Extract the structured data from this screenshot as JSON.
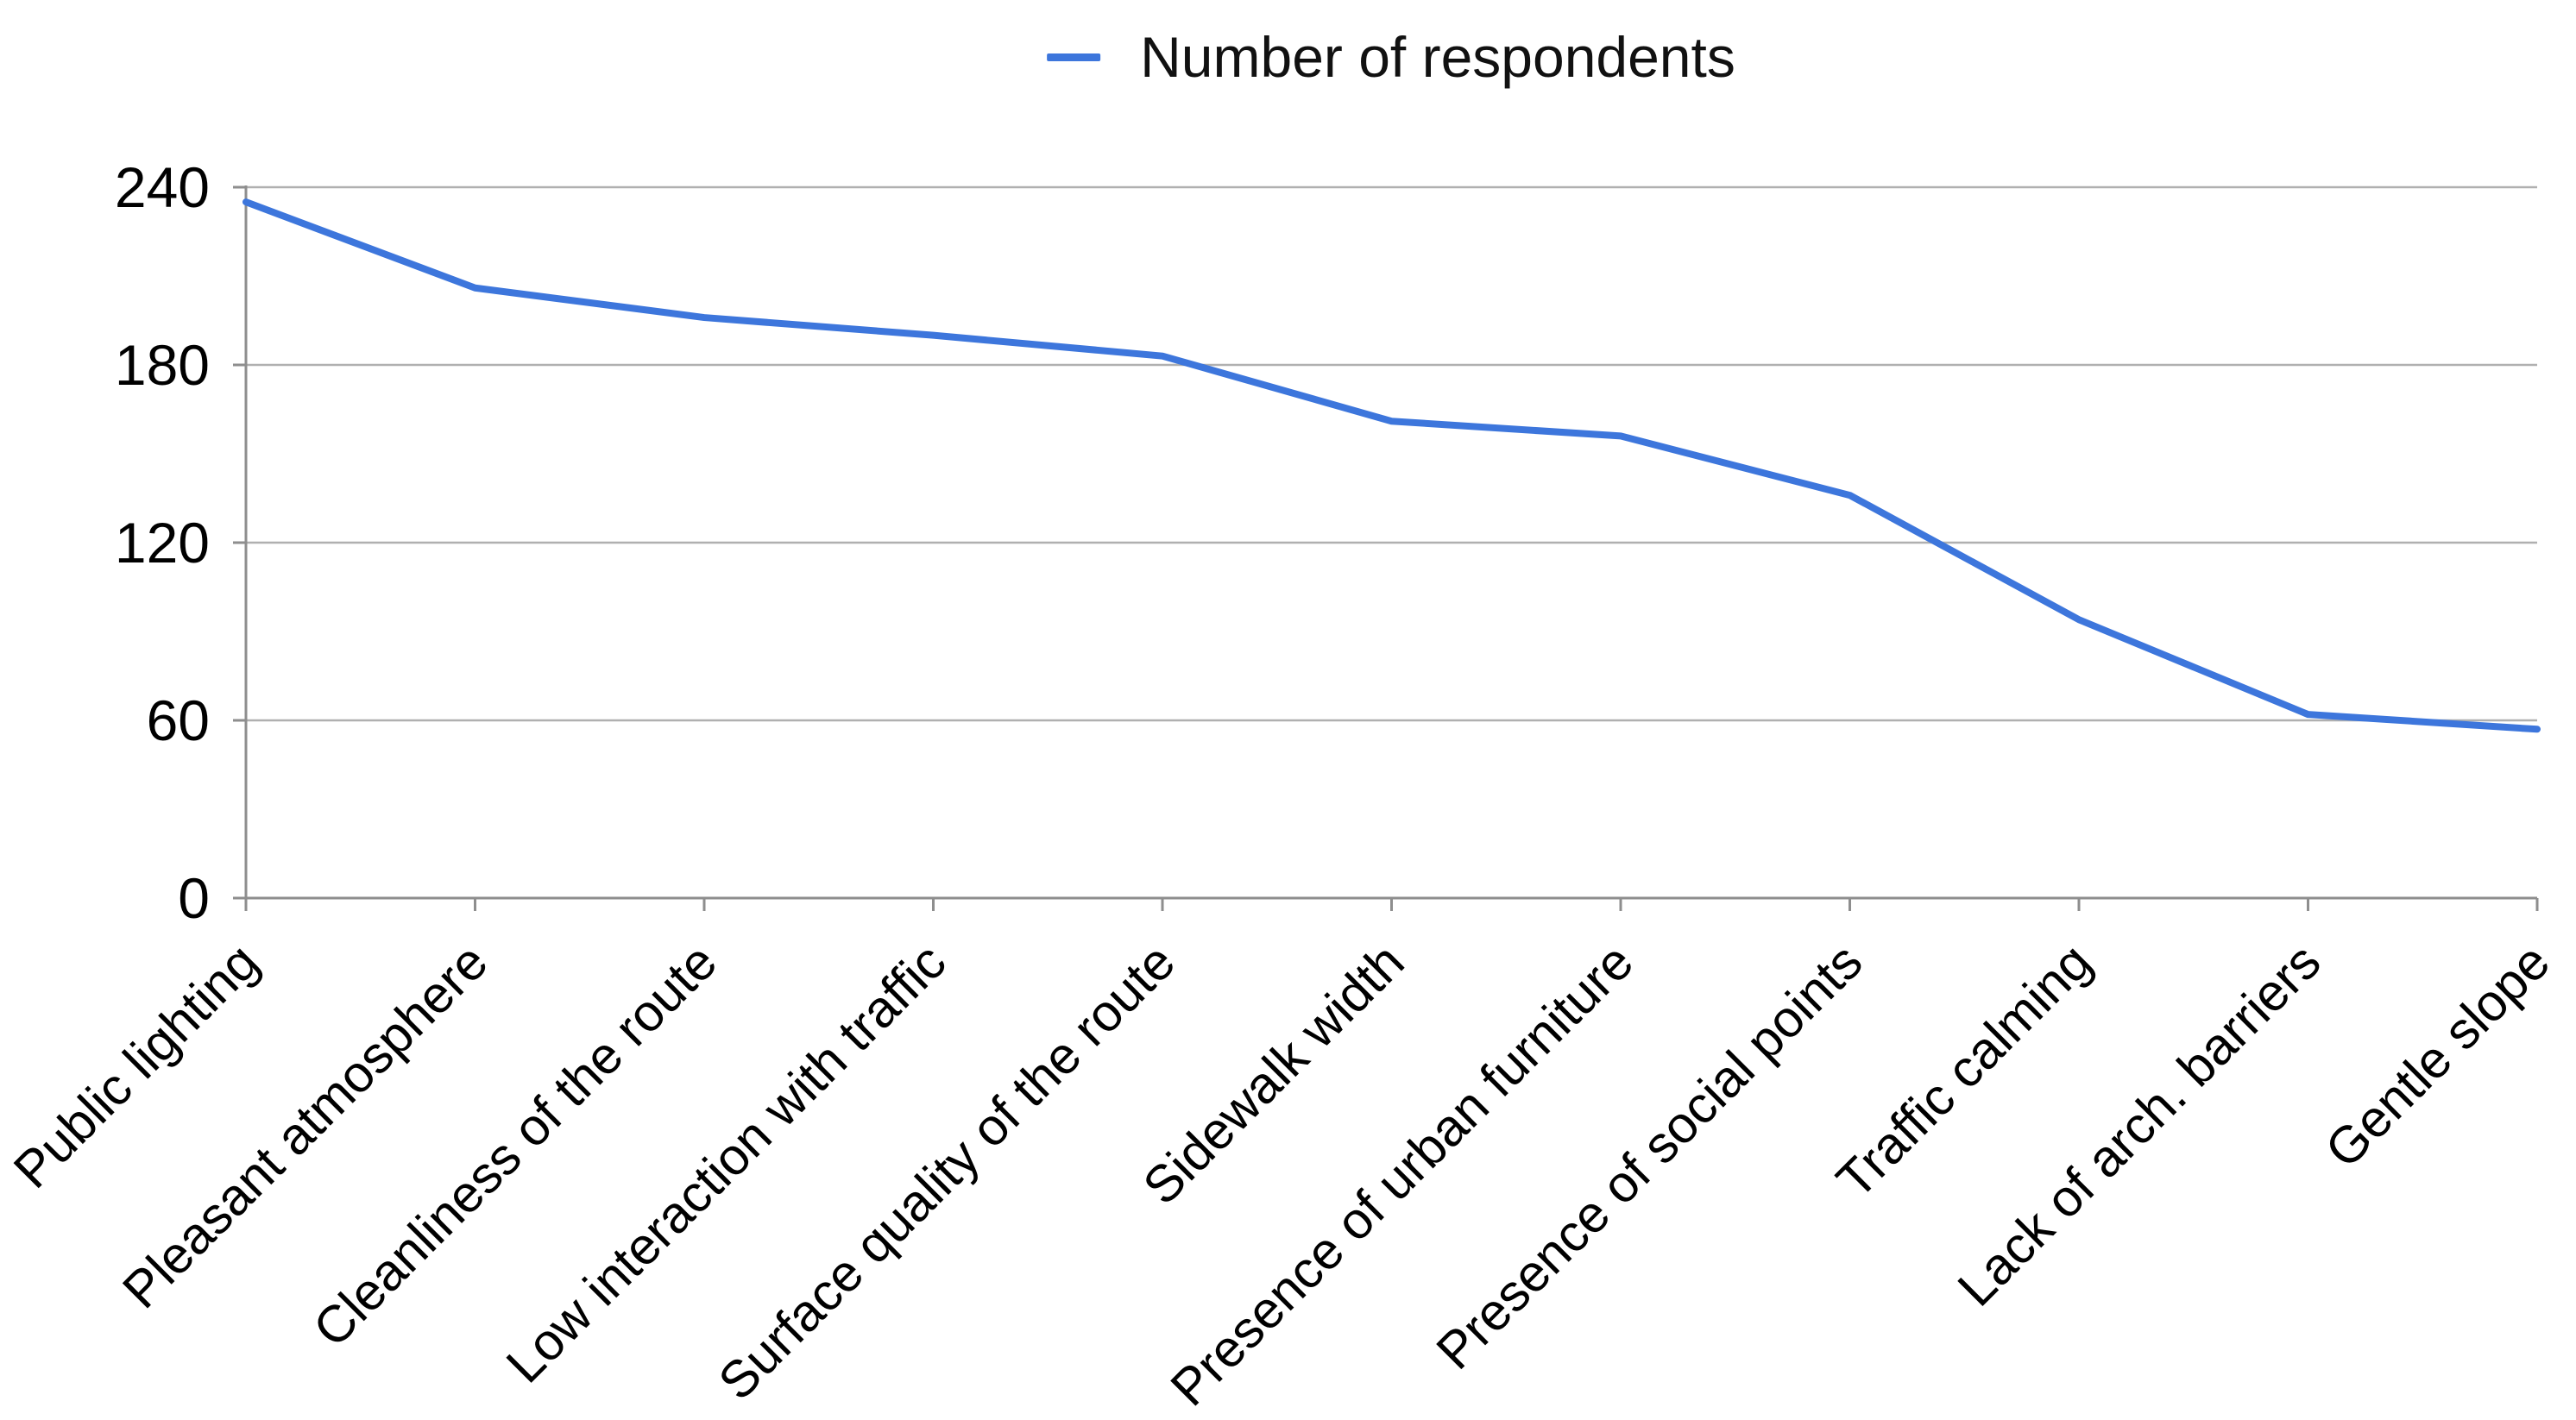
{
  "legend": {
    "label": "Number of respondents"
  },
  "chart_data": {
    "type": "line",
    "title": "",
    "xlabel": "",
    "ylabel": "",
    "categories": [
      "Public lighting",
      "Pleasant atmosphere",
      "Cleanliness of the route",
      "Low interaction with traffic",
      "Surface quality of the route",
      "Sidewalk width",
      "Presence of urban furniture",
      "Presence of social points",
      "Traffic calming",
      "Lack of arch. barriers",
      "Gentle slope"
    ],
    "series": [
      {
        "name": "Number of respondents",
        "values": [
          235,
          206,
          196,
          190,
          183,
          161,
          156,
          136,
          94,
          62,
          57
        ]
      }
    ],
    "ylim": [
      0,
      240
    ],
    "yticks": [
      0,
      60,
      120,
      180,
      240
    ],
    "grid": "horizontal",
    "legend_position": "top-center",
    "colors": {
      "line": "#3d76dc",
      "gridline": "#b0b0b0",
      "axis": "#8e8e8e",
      "text": "#000000"
    }
  }
}
